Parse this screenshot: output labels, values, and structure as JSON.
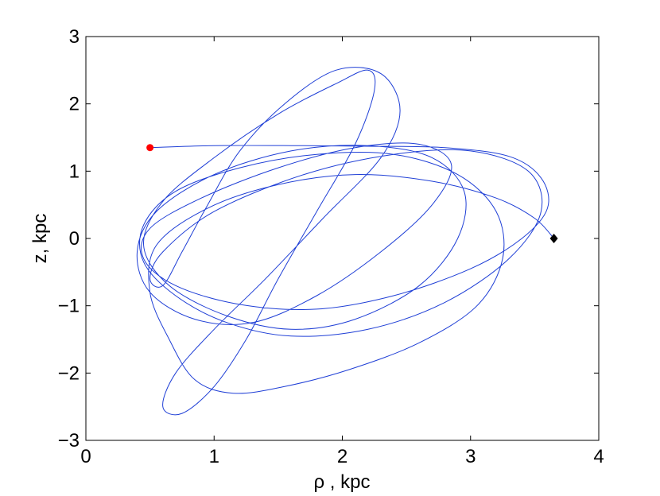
{
  "chart_data": {
    "type": "line",
    "xlabel": "ρ , kpc",
    "ylabel": "z, kpc",
    "xlim": [
      0,
      4
    ],
    "ylim": [
      -3,
      3
    ],
    "xticks": [
      "0",
      "1",
      "2",
      "3",
      "4"
    ],
    "yticks": [
      "−3",
      "−2",
      "−1",
      "0",
      "1",
      "2",
      "3"
    ],
    "grid": false,
    "series": [
      {
        "color": "#1f3fd6",
        "x": [
          0.5,
          1.0,
          1.6,
          2.2,
          2.8,
          3.3,
          3.55,
          3.6,
          3.4,
          3.0,
          2.4,
          1.8,
          1.2,
          0.7,
          0.45,
          0.5,
          0.9,
          1.5,
          2.1,
          2.6,
          2.85,
          2.7,
          2.3,
          1.8,
          1.3,
          0.85,
          0.5,
          0.4,
          0.55,
          1.0,
          1.6,
          2.2,
          2.7,
          2.95,
          2.9,
          2.6,
          2.1,
          1.6,
          1.1,
          0.65,
          0.45,
          0.6,
          1.0,
          1.5,
          1.95,
          2.2,
          2.25,
          2.1,
          1.8,
          1.5,
          1.25,
          1.0,
          0.75,
          0.6,
          0.7,
          1.0,
          1.4,
          1.85,
          2.3,
          2.45,
          2.3,
          1.95,
          1.55,
          1.2,
          0.95,
          0.75,
          0.6,
          0.5,
          0.6,
          1.0,
          1.7,
          2.4,
          3.0,
          3.45,
          3.55,
          3.3,
          2.8,
          2.2,
          1.6,
          1.1,
          0.7,
          0.45,
          0.45,
          0.7,
          1.2,
          1.8,
          2.4,
          2.9,
          3.2,
          3.25,
          3.05,
          2.6,
          2.05,
          1.55,
          1.15,
          0.85,
          0.65,
          0.5,
          0.55,
          0.95,
          1.5,
          2.1,
          2.7,
          3.2,
          3.5,
          3.65
        ],
        "y": [
          1.35,
          1.38,
          1.38,
          1.37,
          1.35,
          1.22,
          0.9,
          0.45,
          0.0,
          -0.45,
          -0.85,
          -1.05,
          -0.98,
          -0.7,
          -0.3,
          0.15,
          0.6,
          1.05,
          1.35,
          1.4,
          1.1,
          0.5,
          -0.2,
          -0.85,
          -1.25,
          -1.2,
          -0.8,
          -0.2,
          0.4,
          0.95,
          1.3,
          1.38,
          1.2,
          0.7,
          0.0,
          -0.7,
          -1.2,
          -1.35,
          -1.15,
          -0.7,
          -0.1,
          0.55,
          1.2,
          1.85,
          2.3,
          2.5,
          2.2,
          1.4,
          0.4,
          -0.6,
          -1.5,
          -2.2,
          -2.6,
          -2.5,
          -2.0,
          -1.35,
          -0.6,
          0.3,
          1.2,
          1.9,
          2.45,
          2.5,
          2.0,
          1.3,
          0.5,
          -0.2,
          -0.7,
          -0.6,
          -0.2,
          0.4,
          0.95,
          1.25,
          1.3,
          1.0,
          0.4,
          -0.3,
          -0.95,
          -1.35,
          -1.45,
          -1.25,
          -0.85,
          -0.35,
          0.2,
          0.7,
          1.05,
          1.25,
          1.25,
          0.95,
          0.4,
          -0.3,
          -1.0,
          -1.55,
          -1.95,
          -2.2,
          -2.3,
          -2.1,
          -1.5,
          -0.8,
          -0.1,
          0.45,
          0.8,
          0.95,
          0.85,
          0.6,
          0.3,
          0.0
        ]
      }
    ],
    "markers": [
      {
        "shape": "circle",
        "color": "#ff0000",
        "x": 0.5,
        "y": 1.35
      },
      {
        "shape": "diamond",
        "color": "#000000",
        "x": 3.65,
        "y": 0.0
      }
    ]
  }
}
